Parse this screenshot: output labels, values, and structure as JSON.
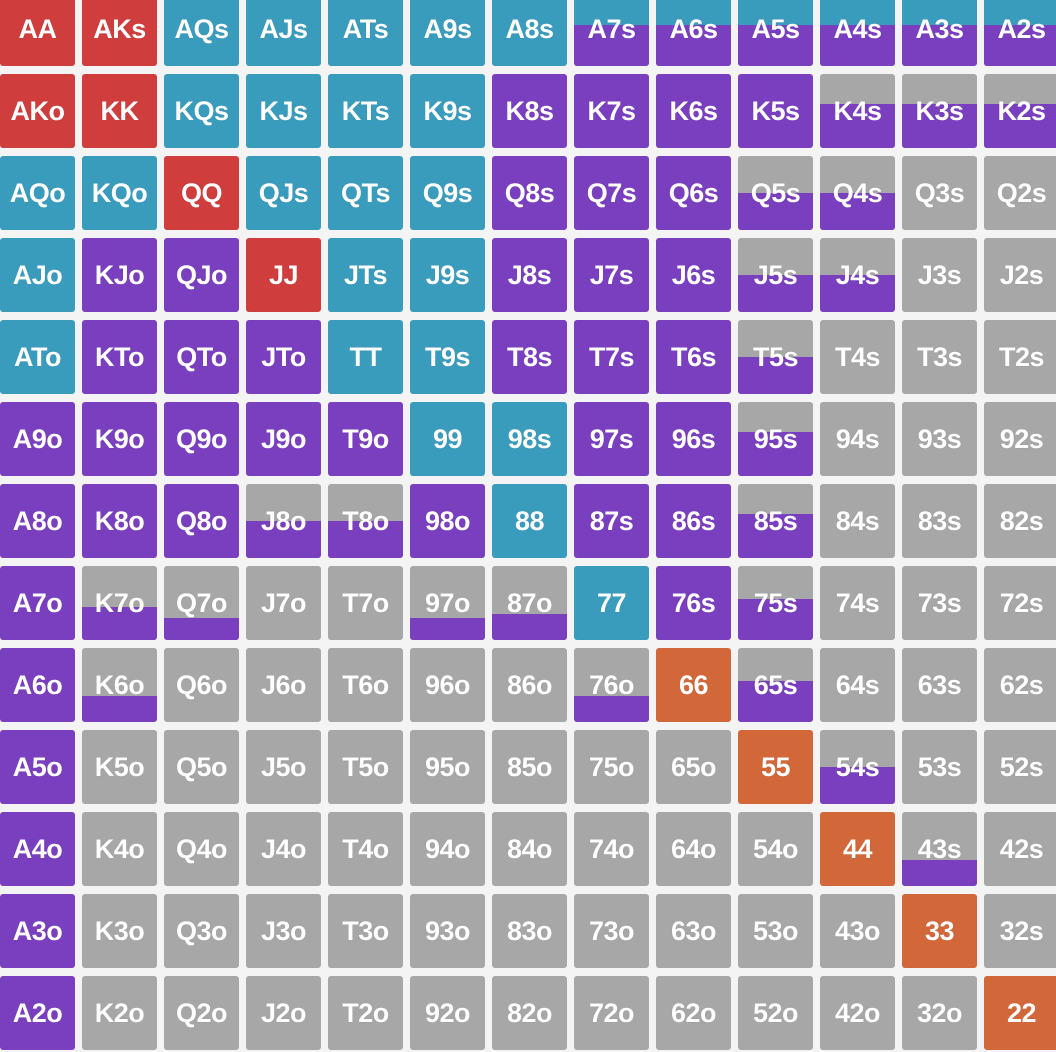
{
  "palette": {
    "fold": "#a7a7a7",
    "raise": "#7a3fbf",
    "call": "#3a9cbc",
    "value_big": "#cf3d3c",
    "value_small": "#d2683a"
  },
  "rows": [
    [
      {
        "label": "AA",
        "base": "value_big",
        "fill": 1.0
      },
      {
        "label": "AKs",
        "base": "value_big",
        "fill": 1.0
      },
      {
        "label": "AQs",
        "base": "call",
        "fill": 1.0
      },
      {
        "label": "AJs",
        "base": "call",
        "fill": 1.0
      },
      {
        "label": "ATs",
        "base": "call",
        "fill": 1.0
      },
      {
        "label": "A9s",
        "base": "call",
        "fill": 1.0
      },
      {
        "label": "A8s",
        "base": "call",
        "fill": 1.0
      },
      {
        "label": "A7s",
        "base": "call",
        "fill": 0.55
      },
      {
        "label": "A6s",
        "base": "call",
        "fill": 0.55
      },
      {
        "label": "A5s",
        "base": "call",
        "fill": 0.55
      },
      {
        "label": "A4s",
        "base": "call",
        "fill": 0.55
      },
      {
        "label": "A3s",
        "base": "call",
        "fill": 0.55
      },
      {
        "label": "A2s",
        "base": "call",
        "fill": 0.55
      }
    ],
    [
      {
        "label": "AKo",
        "base": "value_big",
        "fill": 1.0
      },
      {
        "label": "KK",
        "base": "value_big",
        "fill": 1.0
      },
      {
        "label": "KQs",
        "base": "call",
        "fill": 1.0
      },
      {
        "label": "KJs",
        "base": "call",
        "fill": 1.0
      },
      {
        "label": "KTs",
        "base": "call",
        "fill": 1.0
      },
      {
        "label": "K9s",
        "base": "call",
        "fill": 1.0
      },
      {
        "label": "K8s",
        "base": "raise",
        "fill": 1.0
      },
      {
        "label": "K7s",
        "base": "raise",
        "fill": 1.0
      },
      {
        "label": "K6s",
        "base": "raise",
        "fill": 1.0
      },
      {
        "label": "K5s",
        "base": "raise",
        "fill": 1.0
      },
      {
        "label": "K4s",
        "base": "fold",
        "fill": 0.6
      },
      {
        "label": "K3s",
        "base": "fold",
        "fill": 0.6
      },
      {
        "label": "K2s",
        "base": "fold",
        "fill": 0.6
      }
    ],
    [
      {
        "label": "AQo",
        "base": "call",
        "fill": 1.0
      },
      {
        "label": "KQo",
        "base": "call",
        "fill": 1.0
      },
      {
        "label": "QQ",
        "base": "value_big",
        "fill": 1.0
      },
      {
        "label": "QJs",
        "base": "call",
        "fill": 1.0
      },
      {
        "label": "QTs",
        "base": "call",
        "fill": 1.0
      },
      {
        "label": "Q9s",
        "base": "call",
        "fill": 1.0
      },
      {
        "label": "Q8s",
        "base": "raise",
        "fill": 1.0
      },
      {
        "label": "Q7s",
        "base": "raise",
        "fill": 1.0
      },
      {
        "label": "Q6s",
        "base": "raise",
        "fill": 1.0
      },
      {
        "label": "Q5s",
        "base": "fold",
        "fill": 0.5
      },
      {
        "label": "Q4s",
        "base": "fold",
        "fill": 0.5
      },
      {
        "label": "Q3s",
        "base": "fold",
        "fill": 0
      },
      {
        "label": "Q2s",
        "base": "fold",
        "fill": 0
      }
    ],
    [
      {
        "label": "AJo",
        "base": "call",
        "fill": 1.0
      },
      {
        "label": "KJo",
        "base": "raise",
        "fill": 1.0
      },
      {
        "label": "QJo",
        "base": "raise",
        "fill": 1.0
      },
      {
        "label": "JJ",
        "base": "value_big",
        "fill": 1.0
      },
      {
        "label": "JTs",
        "base": "call",
        "fill": 1.0
      },
      {
        "label": "J9s",
        "base": "call",
        "fill": 1.0
      },
      {
        "label": "J8s",
        "base": "raise",
        "fill": 1.0
      },
      {
        "label": "J7s",
        "base": "raise",
        "fill": 1.0
      },
      {
        "label": "J6s",
        "base": "raise",
        "fill": 1.0
      },
      {
        "label": "J5s",
        "base": "fold",
        "fill": 0.5
      },
      {
        "label": "J4s",
        "base": "fold",
        "fill": 0.5
      },
      {
        "label": "J3s",
        "base": "fold",
        "fill": 0
      },
      {
        "label": "J2s",
        "base": "fold",
        "fill": 0
      }
    ],
    [
      {
        "label": "ATo",
        "base": "call",
        "fill": 1.0
      },
      {
        "label": "KTo",
        "base": "raise",
        "fill": 1.0
      },
      {
        "label": "QTo",
        "base": "raise",
        "fill": 1.0
      },
      {
        "label": "JTo",
        "base": "raise",
        "fill": 1.0
      },
      {
        "label": "TT",
        "base": "call",
        "fill": 1.0
      },
      {
        "label": "T9s",
        "base": "call",
        "fill": 1.0
      },
      {
        "label": "T8s",
        "base": "raise",
        "fill": 1.0
      },
      {
        "label": "T7s",
        "base": "raise",
        "fill": 1.0
      },
      {
        "label": "T6s",
        "base": "raise",
        "fill": 1.0
      },
      {
        "label": "T5s",
        "base": "fold",
        "fill": 0.5
      },
      {
        "label": "T4s",
        "base": "fold",
        "fill": 0
      },
      {
        "label": "T3s",
        "base": "fold",
        "fill": 0
      },
      {
        "label": "T2s",
        "base": "fold",
        "fill": 0
      }
    ],
    [
      {
        "label": "A9o",
        "base": "raise",
        "fill": 1.0
      },
      {
        "label": "K9o",
        "base": "raise",
        "fill": 1.0
      },
      {
        "label": "Q9o",
        "base": "raise",
        "fill": 1.0
      },
      {
        "label": "J9o",
        "base": "raise",
        "fill": 1.0
      },
      {
        "label": "T9o",
        "base": "raise",
        "fill": 1.0
      },
      {
        "label": "99",
        "base": "call",
        "fill": 1.0
      },
      {
        "label": "98s",
        "base": "call",
        "fill": 1.0
      },
      {
        "label": "97s",
        "base": "raise",
        "fill": 1.0
      },
      {
        "label": "96s",
        "base": "raise",
        "fill": 1.0
      },
      {
        "label": "95s",
        "base": "fold",
        "fill": 0.6
      },
      {
        "label": "94s",
        "base": "fold",
        "fill": 0
      },
      {
        "label": "93s",
        "base": "fold",
        "fill": 0
      },
      {
        "label": "92s",
        "base": "fold",
        "fill": 0
      }
    ],
    [
      {
        "label": "A8o",
        "base": "raise",
        "fill": 1.0
      },
      {
        "label": "K8o",
        "base": "raise",
        "fill": 1.0
      },
      {
        "label": "Q8o",
        "base": "raise",
        "fill": 1.0
      },
      {
        "label": "J8o",
        "base": "fold",
        "fill": 0.5
      },
      {
        "label": "T8o",
        "base": "fold",
        "fill": 0.5
      },
      {
        "label": "98o",
        "base": "raise",
        "fill": 1.0
      },
      {
        "label": "88",
        "base": "call",
        "fill": 1.0
      },
      {
        "label": "87s",
        "base": "raise",
        "fill": 1.0
      },
      {
        "label": "86s",
        "base": "raise",
        "fill": 1.0
      },
      {
        "label": "85s",
        "base": "fold",
        "fill": 0.6
      },
      {
        "label": "84s",
        "base": "fold",
        "fill": 0
      },
      {
        "label": "83s",
        "base": "fold",
        "fill": 0
      },
      {
        "label": "82s",
        "base": "fold",
        "fill": 0
      }
    ],
    [
      {
        "label": "A7o",
        "base": "raise",
        "fill": 1.0
      },
      {
        "label": "K7o",
        "base": "fold",
        "fill": 0.45
      },
      {
        "label": "Q7o",
        "base": "fold",
        "fill": 0.3
      },
      {
        "label": "J7o",
        "base": "fold",
        "fill": 0
      },
      {
        "label": "T7o",
        "base": "fold",
        "fill": 0
      },
      {
        "label": "97o",
        "base": "fold",
        "fill": 0.3
      },
      {
        "label": "87o",
        "base": "fold",
        "fill": 0.35
      },
      {
        "label": "77",
        "base": "call",
        "fill": 1.0
      },
      {
        "label": "76s",
        "base": "raise",
        "fill": 1.0
      },
      {
        "label": "75s",
        "base": "fold",
        "fill": 0.55
      },
      {
        "label": "74s",
        "base": "fold",
        "fill": 0
      },
      {
        "label": "73s",
        "base": "fold",
        "fill": 0
      },
      {
        "label": "72s",
        "base": "fold",
        "fill": 0
      }
    ],
    [
      {
        "label": "A6o",
        "base": "raise",
        "fill": 1.0
      },
      {
        "label": "K6o",
        "base": "fold",
        "fill": 0.35
      },
      {
        "label": "Q6o",
        "base": "fold",
        "fill": 0
      },
      {
        "label": "J6o",
        "base": "fold",
        "fill": 0
      },
      {
        "label": "T6o",
        "base": "fold",
        "fill": 0
      },
      {
        "label": "96o",
        "base": "fold",
        "fill": 0
      },
      {
        "label": "86o",
        "base": "fold",
        "fill": 0
      },
      {
        "label": "76o",
        "base": "fold",
        "fill": 0.35
      },
      {
        "label": "66",
        "base": "value_small",
        "fill": 1.0
      },
      {
        "label": "65s",
        "base": "fold",
        "fill": 0.55
      },
      {
        "label": "64s",
        "base": "fold",
        "fill": 0
      },
      {
        "label": "63s",
        "base": "fold",
        "fill": 0
      },
      {
        "label": "62s",
        "base": "fold",
        "fill": 0
      }
    ],
    [
      {
        "label": "A5o",
        "base": "raise",
        "fill": 1.0
      },
      {
        "label": "K5o",
        "base": "fold",
        "fill": 0
      },
      {
        "label": "Q5o",
        "base": "fold",
        "fill": 0
      },
      {
        "label": "J5o",
        "base": "fold",
        "fill": 0
      },
      {
        "label": "T5o",
        "base": "fold",
        "fill": 0
      },
      {
        "label": "95o",
        "base": "fold",
        "fill": 0
      },
      {
        "label": "85o",
        "base": "fold",
        "fill": 0
      },
      {
        "label": "75o",
        "base": "fold",
        "fill": 0
      },
      {
        "label": "65o",
        "base": "fold",
        "fill": 0
      },
      {
        "label": "55",
        "base": "value_small",
        "fill": 1.0
      },
      {
        "label": "54s",
        "base": "fold",
        "fill": 0.5
      },
      {
        "label": "53s",
        "base": "fold",
        "fill": 0
      },
      {
        "label": "52s",
        "base": "fold",
        "fill": 0
      }
    ],
    [
      {
        "label": "A4o",
        "base": "raise",
        "fill": 1.0
      },
      {
        "label": "K4o",
        "base": "fold",
        "fill": 0
      },
      {
        "label": "Q4o",
        "base": "fold",
        "fill": 0
      },
      {
        "label": "J4o",
        "base": "fold",
        "fill": 0
      },
      {
        "label": "T4o",
        "base": "fold",
        "fill": 0
      },
      {
        "label": "94o",
        "base": "fold",
        "fill": 0
      },
      {
        "label": "84o",
        "base": "fold",
        "fill": 0
      },
      {
        "label": "74o",
        "base": "fold",
        "fill": 0
      },
      {
        "label": "64o",
        "base": "fold",
        "fill": 0
      },
      {
        "label": "54o",
        "base": "fold",
        "fill": 0
      },
      {
        "label": "44",
        "base": "value_small",
        "fill": 1.0
      },
      {
        "label": "43s",
        "base": "fold",
        "fill": 0.35
      },
      {
        "label": "42s",
        "base": "fold",
        "fill": 0
      }
    ],
    [
      {
        "label": "A3o",
        "base": "raise",
        "fill": 1.0
      },
      {
        "label": "K3o",
        "base": "fold",
        "fill": 0
      },
      {
        "label": "Q3o",
        "base": "fold",
        "fill": 0
      },
      {
        "label": "J3o",
        "base": "fold",
        "fill": 0
      },
      {
        "label": "T3o",
        "base": "fold",
        "fill": 0
      },
      {
        "label": "93o",
        "base": "fold",
        "fill": 0
      },
      {
        "label": "83o",
        "base": "fold",
        "fill": 0
      },
      {
        "label": "73o",
        "base": "fold",
        "fill": 0
      },
      {
        "label": "63o",
        "base": "fold",
        "fill": 0
      },
      {
        "label": "53o",
        "base": "fold",
        "fill": 0
      },
      {
        "label": "43o",
        "base": "fold",
        "fill": 0
      },
      {
        "label": "33",
        "base": "value_small",
        "fill": 1.0
      },
      {
        "label": "32s",
        "base": "fold",
        "fill": 0
      }
    ],
    [
      {
        "label": "A2o",
        "base": "raise",
        "fill": 1.0
      },
      {
        "label": "K2o",
        "base": "fold",
        "fill": 0
      },
      {
        "label": "Q2o",
        "base": "fold",
        "fill": 0
      },
      {
        "label": "J2o",
        "base": "fold",
        "fill": 0
      },
      {
        "label": "T2o",
        "base": "fold",
        "fill": 0
      },
      {
        "label": "92o",
        "base": "fold",
        "fill": 0
      },
      {
        "label": "82o",
        "base": "fold",
        "fill": 0
      },
      {
        "label": "72o",
        "base": "fold",
        "fill": 0
      },
      {
        "label": "62o",
        "base": "fold",
        "fill": 0
      },
      {
        "label": "52o",
        "base": "fold",
        "fill": 0
      },
      {
        "label": "42o",
        "base": "fold",
        "fill": 0
      },
      {
        "label": "32o",
        "base": "fold",
        "fill": 0
      },
      {
        "label": "22",
        "base": "value_small",
        "fill": 1.0
      }
    ]
  ]
}
